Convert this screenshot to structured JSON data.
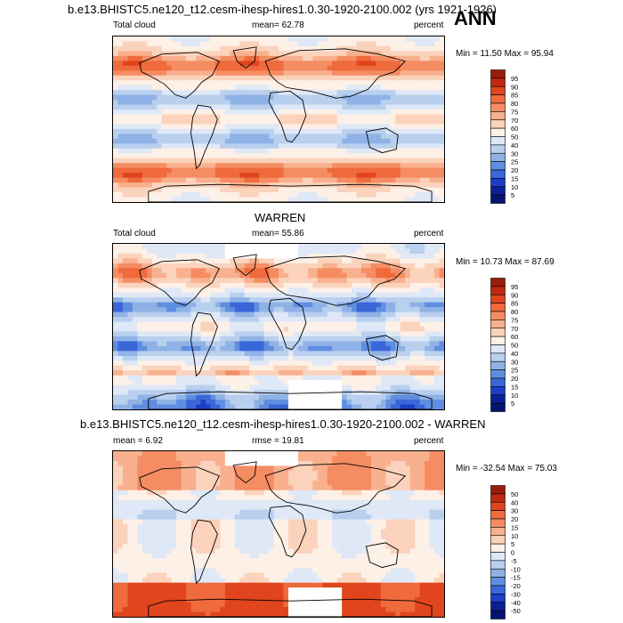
{
  "header": {
    "title": "b.e13.BHISTC5.ne120_t12.cesm-ihesp-hires1.0.30-1920-2100.002 (yrs 1921-1926)",
    "season": "ANN"
  },
  "panels": [
    {
      "id": "model",
      "left_label": "Total cloud",
      "stat_label": "mean=  62.78",
      "units": "percent",
      "minmax": "Min =  11.50 Max =  95.94"
    },
    {
      "id": "obs",
      "title": "WARREN",
      "left_label": "Total cloud",
      "stat_label": "mean=  55.86",
      "units": "percent",
      "minmax": "Min =  10.73 Max =  87.69"
    },
    {
      "id": "diff",
      "title": "b.e13.BHISTC5.ne120_t12.cesm-ihesp-hires1.0.30-1920-2100.002 - WARREN",
      "left_label": "mean =   6.92",
      "stat_label": "rmse =  19.81",
      "units": "percent",
      "minmax": "Min = -32.54 Max =  75.03"
    }
  ],
  "chart_data": [
    {
      "type": "heatmap",
      "title": "Total cloud (model)",
      "units": "percent",
      "mean": 62.78,
      "min": 11.5,
      "max": 95.94,
      "colorbar_levels": [
        95,
        90,
        85,
        80,
        75,
        70,
        60,
        50,
        40,
        30,
        25,
        20,
        15,
        10,
        5
      ],
      "colorbar_colors": [
        "#9a1d0c",
        "#c0280e",
        "#e0451e",
        "#ef6a3c",
        "#f58c62",
        "#f8b08e",
        "#fbd2bb",
        "#fdf0e6",
        "#dfe8f7",
        "#b9cfee",
        "#8fb2e6",
        "#5f8ee0",
        "#3a67d8",
        "#1c3fc4",
        "#0a2194",
        "#061470"
      ]
    },
    {
      "type": "heatmap",
      "title": "WARREN Total cloud",
      "units": "percent",
      "mean": 55.86,
      "min": 10.73,
      "max": 87.69,
      "colorbar_levels": [
        95,
        90,
        85,
        80,
        75,
        70,
        60,
        50,
        40,
        30,
        25,
        20,
        15,
        10,
        5
      ],
      "colorbar_colors": [
        "#9a1d0c",
        "#c0280e",
        "#e0451e",
        "#ef6a3c",
        "#f58c62",
        "#f8b08e",
        "#fbd2bb",
        "#fdf0e6",
        "#dfe8f7",
        "#b9cfee",
        "#8fb2e6",
        "#5f8ee0",
        "#3a67d8",
        "#1c3fc4",
        "#0a2194",
        "#061470"
      ]
    },
    {
      "type": "heatmap",
      "title": "Model - WARREN difference",
      "units": "percent",
      "mean": 6.92,
      "rmse": 19.81,
      "min": -32.54,
      "max": 75.03,
      "colorbar_levels": [
        50,
        40,
        30,
        20,
        15,
        10,
        5,
        0,
        -5,
        -10,
        -15,
        -20,
        -30,
        -40,
        -50
      ],
      "colorbar_colors": [
        "#9a1d0c",
        "#c0280e",
        "#e0451e",
        "#ef6a3c",
        "#f58c62",
        "#f8b08e",
        "#fbd2bb",
        "#fdf0e6",
        "#dfe8f7",
        "#b9cfee",
        "#8fb2e6",
        "#5f8ee0",
        "#3a67d8",
        "#1c3fc4",
        "#0a2194",
        "#061470"
      ]
    }
  ]
}
